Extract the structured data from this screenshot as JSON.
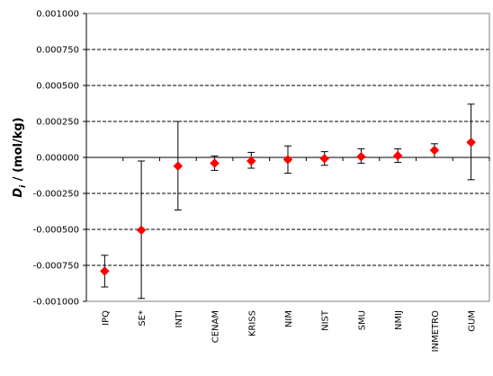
{
  "chart_data": {
    "type": "scatter",
    "title": "",
    "ylabel_main": "D",
    "ylabel_sub": "i",
    "ylabel_rest": " / (mol/kg)",
    "ylim": [
      -0.001,
      0.001
    ],
    "yticks": [
      0.001,
      0.00075,
      0.0005,
      0.00025,
      0,
      -0.00025,
      -0.0005,
      -0.00075,
      -0.001
    ],
    "ytick_labels": [
      "0.001000",
      "0.000750",
      "0.000500",
      "0.000250",
      "0.000000",
      "-0.000250",
      "-0.000500",
      "-0.000750",
      "-0.001000"
    ],
    "grid": "horizontal dashed",
    "marker_color": "#ff0000",
    "categories": [
      "IPQ",
      "SE*",
      "INTI",
      "CENAM",
      "KRISS",
      "NIM",
      "NIST",
      "SMU",
      "NMIJ",
      "INMETRO",
      "GUM"
    ],
    "values": [
      -0.00079,
      -0.000505,
      -6e-05,
      -4e-05,
      -2.5e-05,
      -1.5e-05,
      -8e-06,
      5e-06,
      1.2e-05,
      5e-05,
      0.000105
    ],
    "err_low": [
      -0.0009,
      -0.00098,
      -0.000365,
      -9e-05,
      -7.5e-05,
      -0.00011,
      -5.5e-05,
      -4e-05,
      -3.5e-05,
      0.0,
      -0.000155
    ],
    "err_high": [
      -0.00068,
      -2.5e-05,
      0.00025,
      1e-05,
      3.5e-05,
      8e-05,
      4e-05,
      6e-05,
      6e-05,
      9.5e-05,
      0.00037
    ]
  }
}
